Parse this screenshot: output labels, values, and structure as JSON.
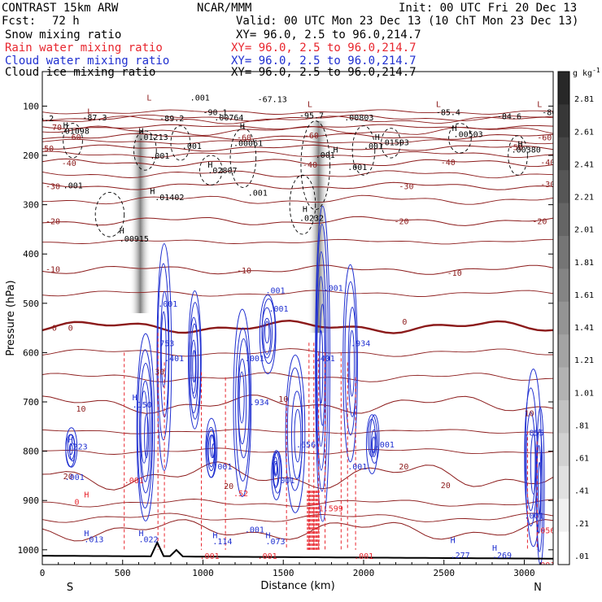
{
  "header": {
    "model": "CONTRAST 15km ARW",
    "center": "NCAR/MMM",
    "init": "Init: 00 UTC Fri 20 Dec 13",
    "fcst_label": "Fcst:",
    "fcst_value": "72 h",
    "valid": "Valid: 00 UTC Mon 23 Dec 13 (10 ChT Mon 23 Dec 13)"
  },
  "legend": [
    {
      "name": "Snow mixing ratio",
      "xy": "",
      "color": "#000000"
    },
    {
      "name": "Rain water mixing ratio",
      "xy": "XY=  96.0,  2.5 to  96.0,214.7",
      "color": "#e8262e"
    },
    {
      "name": "Cloud water mixing ratio",
      "xy": "XY=  96.0,  2.5 to  96.0,214.7",
      "color": "#1f2fd0"
    },
    {
      "name": "Cloud ice mixing ratio",
      "xy": "XY=  96.0,  2.5 to  96.0,214.7",
      "color": "#000000"
    }
  ],
  "xy_snow": "XY=  96.0,  2.5 to  96.0,214.7",
  "chart_data": {
    "type": "contour-cross-section",
    "xlabel": "Distance (km)",
    "ylabel": "Pressure (hPa)",
    "x_ticks": [
      0,
      500,
      1000,
      1500,
      2000,
      2500,
      3000
    ],
    "y_ticks": [
      100,
      200,
      300,
      400,
      500,
      600,
      700,
      800,
      900,
      1000
    ],
    "x_range": [
      0,
      3180
    ],
    "y_range": [
      30,
      1030
    ],
    "end_labels": {
      "left": "S",
      "right": "N"
    },
    "colorbar": {
      "unit": "g kg",
      "unit_exp": "-1",
      "labels": [
        "2.81",
        "2.61",
        "2.41",
        "2.21",
        "2.01",
        "1.81",
        "1.61",
        "1.41",
        "1.21",
        "1.01",
        ".81",
        ".61",
        ".41",
        ".21",
        ".01"
      ]
    },
    "temperature_labels": [
      {
        "text": "-70",
        "x": 30,
        "p": 142
      },
      {
        "text": "-60",
        "x": 150,
        "p": 162
      },
      {
        "text": "-60",
        "x": 1210,
        "p": 163
      },
      {
        "text": "-60",
        "x": 1630,
        "p": 159
      },
      {
        "text": "-60",
        "x": 3080,
        "p": 163
      },
      {
        "text": "-50",
        "x": -20,
        "p": 185
      },
      {
        "text": "-50",
        "x": 2900,
        "p": 183
      },
      {
        "text": "-40",
        "x": 120,
        "p": 215
      },
      {
        "text": "-40",
        "x": 1620,
        "p": 218
      },
      {
        "text": "-40",
        "x": 2480,
        "p": 213
      },
      {
        "text": "-40",
        "x": 3100,
        "p": 213
      },
      {
        "text": "-30",
        "x": 20,
        "p": 262
      },
      {
        "text": "-30",
        "x": 2220,
        "p": 262
      },
      {
        "text": "-30",
        "x": 3100,
        "p": 258
      },
      {
        "text": "-20",
        "x": 20,
        "p": 333
      },
      {
        "text": "-20",
        "x": 2190,
        "p": 333
      },
      {
        "text": "-20",
        "x": 3050,
        "p": 333
      },
      {
        "text": "-10",
        "x": 20,
        "p": 430
      },
      {
        "text": "-10",
        "x": 1210,
        "p": 433
      },
      {
        "text": "-10",
        "x": 2520,
        "p": 438
      },
      {
        "text": "0",
        "x": 60,
        "p": 549
      },
      {
        "text": "0",
        "x": 160,
        "p": 549
      },
      {
        "text": "0",
        "x": 2240,
        "p": 537
      },
      {
        "text": "10",
        "x": 1470,
        "p": 693
      },
      {
        "text": "10",
        "x": 210,
        "p": 713
      },
      {
        "text": "10",
        "x": 3000,
        "p": 722
      },
      {
        "text": "20",
        "x": 130,
        "p": 850
      },
      {
        "text": "20",
        "x": 1130,
        "p": 870
      },
      {
        "text": "20",
        "x": 2220,
        "p": 830
      },
      {
        "text": "20",
        "x": 2480,
        "p": 868
      },
      {
        "text": "30",
        "x": 700,
        "p": 638
      }
    ],
    "extrema_labels": [
      {
        "text": "L",
        "x": 650,
        "p": 82,
        "color": "#8b1a1a"
      },
      {
        "text": ".001",
        "x": 920,
        "p": 82,
        "color": "#000000"
      },
      {
        "text": "L",
        "x": 280,
        "p": 110,
        "color": "#8b1a1a"
      },
      {
        "text": "-87.3",
        "x": 250,
        "p": 122,
        "color": "#000000"
      },
      {
        "text": "5.2",
        "x": -20,
        "p": 124,
        "color": "#000000"
      },
      {
        "text": "-89.2",
        "x": 730,
        "p": 124,
        "color": "#000000"
      },
      {
        "text": "-90.1",
        "x": 1000,
        "p": 112,
        "color": "#000000"
      },
      {
        "text": ".00764",
        "x": 1070,
        "p": 122,
        "color": "#000000"
      },
      {
        "text": "-67.13",
        "x": 1340,
        "p": 85,
        "color": "#000000"
      },
      {
        "text": "L",
        "x": 1650,
        "p": 95,
        "color": "#8b1a1a"
      },
      {
        "text": "-95.7",
        "x": 1600,
        "p": 118,
        "color": "#000000"
      },
      {
        "text": ".00803",
        "x": 1880,
        "p": 122,
        "color": "#000000"
      },
      {
        "text": "L",
        "x": 2450,
        "p": 95,
        "color": "#8b1a1a"
      },
      {
        "text": "-85.4",
        "x": 2450,
        "p": 112,
        "color": "#000000"
      },
      {
        "text": "-84.6",
        "x": 2830,
        "p": 120,
        "color": "#000000"
      },
      {
        "text": "L",
        "x": 3080,
        "p": 95,
        "color": "#8b1a1a"
      },
      {
        "text": "-86.0",
        "x": 3110,
        "p": 112,
        "color": "#000000"
      },
      {
        "text": "H",
        "x": 130,
        "p": 138,
        "color": "#000000"
      },
      {
        "text": ".01098",
        "x": 110,
        "p": 150,
        "color": "#000000"
      },
      {
        "text": "H",
        "x": 600,
        "p": 150,
        "color": "#000000"
      },
      {
        "text": ".01213",
        "x": 600,
        "p": 162,
        "color": "#000000"
      },
      {
        "text": ".001",
        "x": 670,
        "p": 200,
        "color": "#000000"
      },
      {
        "text": "H",
        "x": 1230,
        "p": 140,
        "color": "#000000"
      },
      {
        "text": ".00061",
        "x": 1190,
        "p": 174,
        "color": "#000000"
      },
      {
        "text": "H",
        "x": 1810,
        "p": 188,
        "color": "#000000"
      },
      {
        "text": ".001",
        "x": 1700,
        "p": 198,
        "color": "#000000"
      },
      {
        "text": ".001",
        "x": 2000,
        "p": 180,
        "color": "#000000"
      },
      {
        "text": "H",
        "x": 2070,
        "p": 162,
        "color": "#000000"
      },
      {
        "text": ".01503",
        "x": 2100,
        "p": 173,
        "color": "#000000"
      },
      {
        "text": "H",
        "x": 2550,
        "p": 144,
        "color": "#000000"
      },
      {
        "text": ".00503",
        "x": 2560,
        "p": 156,
        "color": "#000000"
      },
      {
        "text": "H",
        "x": 2960,
        "p": 176,
        "color": "#000000"
      },
      {
        "text": ".00380",
        "x": 2920,
        "p": 188,
        "color": "#000000"
      },
      {
        "text": ".001",
        "x": 870,
        "p": 180,
        "color": "#000000"
      },
      {
        "text": "H",
        "x": 1030,
        "p": 218,
        "color": "#000000"
      },
      {
        "text": ".02807",
        "x": 1030,
        "p": 230,
        "color": "#000000"
      },
      {
        "text": ".001",
        "x": 1280,
        "p": 275,
        "color": "#000000"
      },
      {
        "text": ".001",
        "x": 1900,
        "p": 223,
        "color": "#000000"
      },
      {
        "text": ".001",
        "x": 130,
        "p": 260,
        "color": "#000000"
      },
      {
        "text": "H",
        "x": 670,
        "p": 272,
        "color": "#000000"
      },
      {
        "text": ".01402",
        "x": 700,
        "p": 284,
        "color": "#000000"
      },
      {
        "text": "H",
        "x": 1620,
        "p": 308,
        "color": "#000000"
      },
      {
        "text": ".0232",
        "x": 1600,
        "p": 326,
        "color": "#000000"
      },
      {
        "text": "H",
        "x": 480,
        "p": 352,
        "color": "#000000"
      },
      {
        "text": ".00915",
        "x": 480,
        "p": 368,
        "color": "#000000"
      },
      {
        "text": ".001",
        "x": 720,
        "p": 500,
        "color": "#1f2fd0"
      },
      {
        "text": ".001",
        "x": 1390,
        "p": 473,
        "color": "#1f2fd0"
      },
      {
        "text": ".001",
        "x": 1410,
        "p": 510,
        "color": "#1f2fd0"
      },
      {
        "text": ".001",
        "x": 1750,
        "p": 468,
        "color": "#1f2fd0"
      },
      {
        "text": ".753",
        "x": 700,
        "p": 580,
        "color": "#1f2fd0"
      },
      {
        "text": ".401",
        "x": 760,
        "p": 611,
        "color": "#1f2fd0"
      },
      {
        "text": ".001",
        "x": 1260,
        "p": 611,
        "color": "#1f2fd0"
      },
      {
        "text": ".401",
        "x": 1700,
        "p": 611,
        "color": "#1f2fd0"
      },
      {
        "text": ".934",
        "x": 1920,
        "p": 580,
        "color": "#1f2fd0"
      },
      {
        "text": "H",
        "x": 560,
        "p": 690,
        "color": "#1f2fd0"
      },
      {
        "text": ".150",
        "x": 560,
        "p": 705,
        "color": "#1f2fd0"
      },
      {
        "text": ".934",
        "x": 1290,
        "p": 700,
        "color": "#1f2fd0"
      },
      {
        "text": "H",
        "x": 160,
        "p": 776,
        "color": "#1f2fd0"
      },
      {
        "text": ".223",
        "x": 160,
        "p": 790,
        "color": "#1f2fd0"
      },
      {
        "text": ".656",
        "x": 1580,
        "p": 786,
        "color": "#1f2fd0"
      },
      {
        "text": ".001",
        "x": 1060,
        "p": 830,
        "color": "#1f2fd0"
      },
      {
        "text": ".001",
        "x": 1900,
        "p": 830,
        "color": "#1f2fd0"
      },
      {
        "text": ".001",
        "x": 2070,
        "p": 786,
        "color": "#1f2fd0"
      },
      {
        "text": ".855",
        "x": 3000,
        "p": 762,
        "color": "#1f2fd0"
      },
      {
        "text": ".001",
        "x": 140,
        "p": 852,
        "color": "#1f2fd0"
      },
      {
        "text": ".52",
        "x": 1190,
        "p": 885,
        "color": "#e8262e"
      },
      {
        "text": ".001",
        "x": 510,
        "p": 858,
        "color": "#e8262e"
      },
      {
        "text": ".001",
        "x": 1450,
        "p": 858,
        "color": "#1f2fd0"
      },
      {
        "text": "1.599",
        "x": 1720,
        "p": 915,
        "color": "#e8262e"
      },
      {
        "text": "H",
        "x": 260,
        "p": 887,
        "color": "#e8262e"
      },
      {
        "text": "0",
        "x": 200,
        "p": 902,
        "color": "#e8262e"
      },
      {
        "text": "H",
        "x": 260,
        "p": 966,
        "color": "#1f2fd0"
      },
      {
        "text": ".013",
        "x": 260,
        "p": 978,
        "color": "#1f2fd0"
      },
      {
        "text": "H",
        "x": 600,
        "p": 966,
        "color": "#1f2fd0"
      },
      {
        "text": ".022",
        "x": 600,
        "p": 978,
        "color": "#1f2fd0"
      },
      {
        "text": "H",
        "x": 1060,
        "p": 970,
        "color": "#1f2fd0"
      },
      {
        "text": ".114",
        "x": 1060,
        "p": 982,
        "color": "#1f2fd0"
      },
      {
        "text": ".001",
        "x": 1260,
        "p": 958,
        "color": "#1f2fd0"
      },
      {
        "text": "H",
        "x": 1390,
        "p": 970,
        "color": "#1f2fd0"
      },
      {
        "text": ".073",
        "x": 1390,
        "p": 982,
        "color": "#1f2fd0"
      },
      {
        "text": ".001",
        "x": 980,
        "p": 1012,
        "color": "#e8262e"
      },
      {
        "text": ".001",
        "x": 1340,
        "p": 1012,
        "color": "#e8262e"
      },
      {
        "text": ".001",
        "x": 1940,
        "p": 1012,
        "color": "#e8262e"
      },
      {
        "text": "H",
        "x": 2540,
        "p": 980,
        "color": "#1f2fd0"
      },
      {
        "text": ".277",
        "x": 2540,
        "p": 1010,
        "color": "#1f2fd0"
      },
      {
        "text": "H",
        "x": 2800,
        "p": 995,
        "color": "#1f2fd0"
      },
      {
        "text": ".269",
        "x": 2800,
        "p": 1010,
        "color": "#1f2fd0"
      },
      {
        "text": ".001",
        "x": 3000,
        "p": 930,
        "color": "#1f2fd0"
      },
      {
        "text": ".056",
        "x": 3070,
        "p": 960,
        "color": "#e8262e"
      },
      {
        "text": ".001",
        "x": 3070,
        "p": 1030,
        "color": "#e8262e"
      }
    ],
    "series": [
      {
        "name": "Snow mixing ratio",
        "color": "#000000",
        "style": "dashed"
      },
      {
        "name": "Rain water mixing ratio",
        "color": "#e8262e",
        "style": "dashed"
      },
      {
        "name": "Cloud water mixing ratio",
        "color": "#1f2fd0",
        "style": "solid"
      },
      {
        "name": "Cloud ice mixing ratio",
        "color": "#777777",
        "style": "shaded"
      }
    ],
    "isotherms_p": [
      {
        "t": -70,
        "base": 142,
        "amp": 3
      },
      {
        "t": -60,
        "base": 162,
        "amp": 4
      },
      {
        "t": -50,
        "base": 185,
        "amp": 4
      },
      {
        "t": -40,
        "base": 215,
        "amp": 5
      },
      {
        "t": -30,
        "base": 262,
        "amp": 5
      },
      {
        "t": -20,
        "base": 333,
        "amp": 6
      },
      {
        "t": -10,
        "base": 432,
        "amp": 6
      },
      {
        "t": 0,
        "base": 548,
        "amp": 8
      },
      {
        "t": 10,
        "base": 705,
        "amp": 12
      },
      {
        "t": 20,
        "base": 850,
        "amp": 18
      },
      {
        "t": 30,
        "base": 960,
        "amp": 14
      }
    ],
    "extra_isotherms_p": [
      112,
      124,
      128,
      150,
      172,
      198,
      238,
      290,
      375,
      480,
      600,
      650,
      760,
      800,
      905,
      935
    ]
  }
}
